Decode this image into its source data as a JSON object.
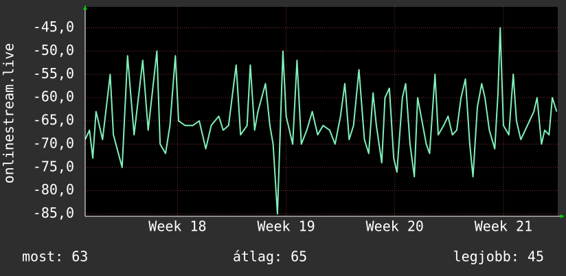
{
  "chart_data": {
    "type": "line",
    "ylabel": "onlinestream.live",
    "color": "#80f0b8",
    "grid": true,
    "xlim": [
      17.15,
      21.5
    ],
    "ylim": [
      -85.5,
      -40.5
    ],
    "xticks": [
      {
        "value": 18,
        "label": "Week 18"
      },
      {
        "value": 19,
        "label": "Week 19"
      },
      {
        "value": 20,
        "label": "Week 20"
      },
      {
        "value": 21,
        "label": "Week 21"
      }
    ],
    "yticks": [
      {
        "value": -45,
        "label": "-45,0"
      },
      {
        "value": -50,
        "label": "-50,0"
      },
      {
        "value": -55,
        "label": "-55,0"
      },
      {
        "value": -60,
        "label": "-60,0"
      },
      {
        "value": -65,
        "label": "-65,0"
      },
      {
        "value": -70,
        "label": "-70,0"
      },
      {
        "value": -75,
        "label": "-75,0"
      },
      {
        "value": -80,
        "label": "-80,0"
      },
      {
        "value": -85,
        "label": "-85,0"
      }
    ],
    "x": [
      17.15,
      17.19,
      17.22,
      17.25,
      17.28,
      17.31,
      17.38,
      17.41,
      17.49,
      17.54,
      17.6,
      17.68,
      17.73,
      17.81,
      17.84,
      17.89,
      17.93,
      17.98,
      18.01,
      18.07,
      18.14,
      18.2,
      18.26,
      18.31,
      18.38,
      18.42,
      18.47,
      18.54,
      18.58,
      18.64,
      18.67,
      18.71,
      18.74,
      18.81,
      18.85,
      18.88,
      18.92,
      18.97,
      19.0,
      19.06,
      19.1,
      19.14,
      19.19,
      19.24,
      19.29,
      19.34,
      19.4,
      19.45,
      19.5,
      19.54,
      19.58,
      19.62,
      19.67,
      19.72,
      19.76,
      19.8,
      19.83,
      19.88,
      19.91,
      19.95,
      19.99,
      20.02,
      20.07,
      20.1,
      20.14,
      20.18,
      20.21,
      20.25,
      20.29,
      20.32,
      20.37,
      20.4,
      20.45,
      20.49,
      20.53,
      20.57,
      20.61,
      20.65,
      20.69,
      20.72,
      20.76,
      20.8,
      20.83,
      20.87,
      20.92,
      20.95,
      20.97,
      21.0,
      21.05,
      21.09,
      21.12,
      21.16,
      21.2,
      21.24,
      21.28,
      21.31,
      21.35,
      21.38,
      21.42,
      21.45,
      21.49
    ],
    "values": [
      -69,
      -67,
      -73,
      -63,
      -66,
      -69,
      -55,
      -68,
      -75,
      -51,
      -68,
      -52,
      -67,
      -50,
      -70,
      -72,
      -66,
      -51,
      -65,
      -66,
      -66,
      -65,
      -71,
      -66,
      -64,
      -67,
      -66,
      -53,
      -68,
      -66,
      -53,
      -67,
      -63,
      -57,
      -66,
      -70,
      -85,
      -50,
      -64,
      -70,
      -52,
      -70,
      -67,
      -63,
      -68,
      -66,
      -67,
      -70,
      -64,
      -57,
      -69,
      -66,
      -54,
      -69,
      -72,
      -59,
      -66,
      -74,
      -60,
      -58,
      -73,
      -76,
      -60,
      -57,
      -70,
      -77,
      -60,
      -65,
      -70,
      -72,
      -55,
      -68,
      -66,
      -64,
      -68,
      -67,
      -60,
      -56,
      -70,
      -77,
      -62,
      -57,
      -60,
      -67,
      -71,
      -59,
      -45,
      -66,
      -68,
      -55,
      -65,
      -69,
      -67,
      -65,
      -63,
      -60,
      -70,
      -67,
      -68,
      -60,
      -63
    ]
  },
  "footer": [
    "most: 63",
    "átlag: 65",
    "legjobb: 45"
  ]
}
